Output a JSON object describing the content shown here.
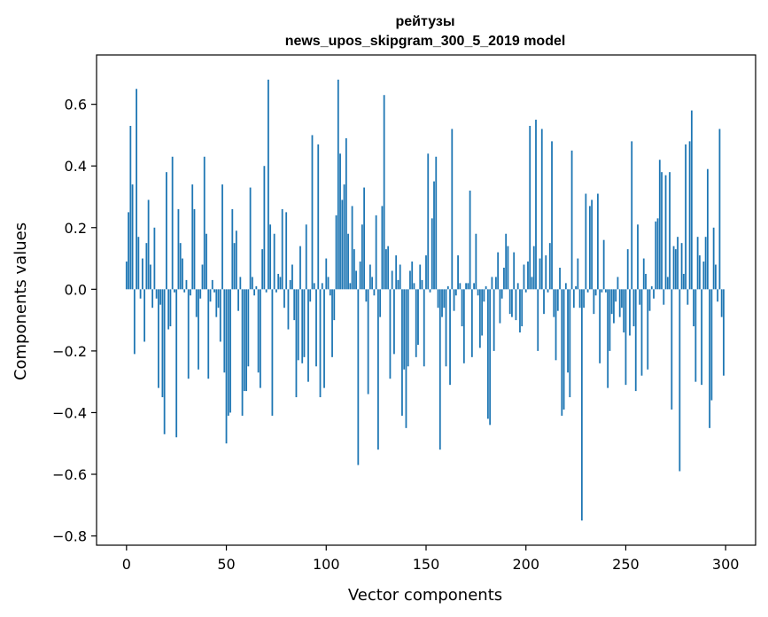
{
  "chart_data": {
    "type": "bar",
    "title": "рейтузы",
    "subtitle": "news_upos_skipgram_300_5_2019 model",
    "xlabel": "Vector components",
    "ylabel": "Components values",
    "xlim": [
      -15,
      315
    ],
    "ylim": [
      -0.83,
      0.76
    ],
    "x_ticks": [
      0,
      50,
      100,
      150,
      200,
      250,
      300
    ],
    "y_ticks": [
      -0.8,
      -0.6,
      -0.4,
      -0.2,
      0.0,
      0.2,
      0.4,
      0.6
    ],
    "y_tick_labels": [
      "−0.8",
      "−0.6",
      "−0.4",
      "−0.2",
      "0.0",
      "0.2",
      "0.4",
      "0.6"
    ],
    "grid": false,
    "bar_color": "#1f77b4",
    "x": [
      0,
      1,
      2,
      3,
      4,
      5,
      6,
      7,
      8,
      9,
      10,
      11,
      12,
      13,
      14,
      15,
      16,
      17,
      18,
      19,
      20,
      21,
      22,
      23,
      24,
      25,
      26,
      27,
      28,
      29,
      30,
      31,
      32,
      33,
      34,
      35,
      36,
      37,
      38,
      39,
      40,
      41,
      42,
      43,
      44,
      45,
      46,
      47,
      48,
      49,
      50,
      51,
      52,
      53,
      54,
      55,
      56,
      57,
      58,
      59,
      60,
      61,
      62,
      63,
      64,
      65,
      66,
      67,
      68,
      69,
      70,
      71,
      72,
      73,
      74,
      75,
      76,
      77,
      78,
      79,
      80,
      81,
      82,
      83,
      84,
      85,
      86,
      87,
      88,
      89,
      90,
      91,
      92,
      93,
      94,
      95,
      96,
      97,
      98,
      99,
      100,
      101,
      102,
      103,
      104,
      105,
      106,
      107,
      108,
      109,
      110,
      111,
      112,
      113,
      114,
      115,
      116,
      117,
      118,
      119,
      120,
      121,
      122,
      123,
      124,
      125,
      126,
      127,
      128,
      129,
      130,
      131,
      132,
      133,
      134,
      135,
      136,
      137,
      138,
      139,
      140,
      141,
      142,
      143,
      144,
      145,
      146,
      147,
      148,
      149,
      150,
      151,
      152,
      153,
      154,
      155,
      156,
      157,
      158,
      159,
      160,
      161,
      162,
      163,
      164,
      165,
      166,
      167,
      168,
      169,
      170,
      171,
      172,
      173,
      174,
      175,
      176,
      177,
      178,
      179,
      180,
      181,
      182,
      183,
      184,
      185,
      186,
      187,
      188,
      189,
      190,
      191,
      192,
      193,
      194,
      195,
      196,
      197,
      198,
      199,
      200,
      201,
      202,
      203,
      204,
      205,
      206,
      207,
      208,
      209,
      210,
      211,
      212,
      213,
      214,
      215,
      216,
      217,
      218,
      219,
      220,
      221,
      222,
      223,
      224,
      225,
      226,
      227,
      228,
      229,
      230,
      231,
      232,
      233,
      234,
      235,
      236,
      237,
      238,
      239,
      240,
      241,
      242,
      243,
      244,
      245,
      246,
      247,
      248,
      249,
      250,
      251,
      252,
      253,
      254,
      255,
      256,
      257,
      258,
      259,
      260,
      261,
      262,
      263,
      264,
      265,
      266,
      267,
      268,
      269,
      270,
      271,
      272,
      273,
      274,
      275,
      276,
      277,
      278,
      279,
      280,
      281,
      282,
      283,
      284,
      285,
      286,
      287,
      288,
      289,
      290,
      291,
      292,
      293,
      294,
      295,
      296,
      297,
      298,
      299
    ],
    "values": [
      0.09,
      0.25,
      0.53,
      0.34,
      -0.21,
      0.65,
      0.17,
      -0.03,
      0.1,
      -0.17,
      0.15,
      0.29,
      0.08,
      -0.06,
      0.2,
      -0.03,
      -0.32,
      -0.05,
      -0.35,
      -0.47,
      0.38,
      -0.13,
      -0.12,
      0.43,
      -0.01,
      -0.48,
      0.26,
      0.15,
      0.1,
      -0.01,
      0.03,
      -0.29,
      -0.02,
      0.34,
      0.26,
      -0.09,
      -0.26,
      -0.03,
      0.08,
      0.43,
      0.18,
      -0.29,
      -0.04,
      0.03,
      -0.01,
      -0.09,
      -0.06,
      -0.17,
      0.34,
      -0.27,
      -0.5,
      -0.41,
      -0.4,
      0.26,
      0.15,
      0.19,
      -0.07,
      0.04,
      -0.41,
      -0.33,
      -0.33,
      -0.25,
      0.33,
      0.04,
      -0.02,
      0.01,
      -0.27,
      -0.32,
      0.13,
      0.4,
      -0.01,
      0.68,
      0.21,
      -0.41,
      0.18,
      -0.01,
      0.05,
      0.04,
      0.26,
      -0.06,
      0.25,
      -0.13,
      0.03,
      0.08,
      -0.1,
      -0.35,
      -0.23,
      0.14,
      -0.24,
      -0.22,
      0.21,
      -0.3,
      -0.04,
      0.5,
      0.02,
      -0.25,
      0.47,
      -0.35,
      0.02,
      -0.32,
      0.1,
      0.04,
      -0.02,
      -0.22,
      -0.1,
      0.24,
      0.68,
      0.44,
      0.29,
      0.34,
      0.49,
      0.18,
      0.02,
      0.27,
      0.13,
      0.06,
      -0.57,
      0.09,
      0.21,
      0.33,
      -0.04,
      -0.34,
      0.08,
      0.04,
      -0.02,
      0.24,
      -0.52,
      -0.09,
      0.27,
      0.63,
      0.13,
      0.14,
      -0.29,
      0.06,
      -0.21,
      0.11,
      0.03,
      0.08,
      -0.41,
      -0.26,
      -0.45,
      -0.25,
      0.06,
      0.09,
      0.02,
      -0.22,
      -0.18,
      0.08,
      0.03,
      -0.25,
      0.11,
      0.44,
      -0.01,
      0.23,
      0.35,
      0.43,
      -0.06,
      -0.52,
      -0.09,
      -0.06,
      -0.25,
      0.01,
      -0.31,
      0.52,
      -0.07,
      -0.02,
      0.11,
      0.02,
      -0.12,
      -0.24,
      0.02,
      0.02,
      0.32,
      -0.22,
      0.02,
      0.18,
      -0.02,
      -0.19,
      -0.15,
      -0.04,
      0.01,
      -0.42,
      -0.44,
      0.04,
      -0.2,
      0.04,
      0.12,
      -0.11,
      -0.03,
      0.07,
      0.18,
      0.14,
      -0.08,
      -0.09,
      0.12,
      -0.1,
      0.02,
      -0.14,
      -0.12,
      0.08,
      -0.01,
      0.09,
      0.53,
      0.04,
      0.14,
      0.55,
      -0.2,
      0.1,
      0.52,
      -0.08,
      0.11,
      -0.01,
      0.15,
      0.48,
      -0.09,
      -0.23,
      -0.07,
      0.07,
      -0.41,
      -0.39,
      0.02,
      -0.27,
      -0.35,
      0.45,
      -0.06,
      0.01,
      0.1,
      -0.06,
      -0.75,
      -0.06,
      0.31,
      -0.01,
      0.27,
      0.29,
      -0.08,
      -0.02,
      0.31,
      -0.24,
      -0.01,
      0.16,
      -0.01,
      -0.32,
      -0.2,
      -0.08,
      -0.11,
      -0.04,
      0.04,
      -0.09,
      -0.06,
      -0.14,
      -0.31,
      0.13,
      -0.15,
      0.48,
      -0.12,
      -0.33,
      0.21,
      -0.05,
      -0.28,
      0.1,
      0.05,
      -0.26,
      -0.07,
      0.01,
      -0.03,
      0.22,
      0.23,
      0.42,
      0.38,
      -0.05,
      0.37,
      0.04,
      0.38,
      -0.39,
      0.14,
      0.13,
      0.17,
      -0.59,
      0.15,
      0.05,
      0.47,
      -0.05,
      0.48,
      0.58,
      -0.12,
      -0.3,
      0.17,
      0.11,
      -0.31,
      0.09,
      0.17,
      0.39,
      -0.45,
      -0.36,
      0.2,
      0.08,
      -0.04,
      0.52,
      -0.09,
      -0.28
    ]
  }
}
